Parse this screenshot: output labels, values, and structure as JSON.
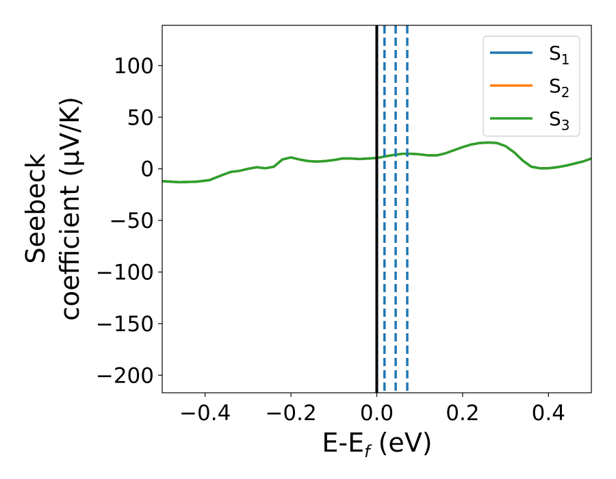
{
  "chart_data": {
    "type": "line",
    "xlabel": "E-E",
    "xlabel_sub": "f",
    "xlabel_unit": " (eV)",
    "ylabel_line1": "Seebeck",
    "ylabel_line2": "coefficient (μV/K)",
    "xlim": [
      -0.5,
      0.5
    ],
    "ylim": [
      -217,
      139
    ],
    "xticks": [
      -0.4,
      -0.2,
      0.0,
      0.2,
      0.4
    ],
    "xtick_labels": [
      "−0.4",
      "−0.2",
      "0.0",
      "0.2",
      "0.4"
    ],
    "yticks": [
      100,
      50,
      0,
      -50,
      -100,
      -150,
      -200
    ],
    "ytick_labels": [
      "100",
      "50",
      "0",
      "−50",
      "−100",
      "−150",
      "−200"
    ],
    "grid": false,
    "legend_position": "top-right",
    "series": [
      {
        "name": "S",
        "name_sub": "1",
        "color": "#1f77b4",
        "x": [
          -0.5,
          -0.46,
          -0.42,
          -0.39,
          -0.36,
          -0.34,
          -0.32,
          -0.3,
          -0.28,
          -0.26,
          -0.24,
          -0.22,
          -0.2,
          -0.18,
          -0.16,
          -0.14,
          -0.12,
          -0.1,
          -0.08,
          -0.06,
          -0.04,
          -0.02,
          0.0,
          0.02,
          0.04,
          0.06,
          0.08,
          0.1,
          0.12,
          0.14,
          0.16,
          0.18,
          0.2,
          0.22,
          0.24,
          0.26,
          0.28,
          0.3,
          0.32,
          0.34,
          0.36,
          0.38,
          0.4,
          0.42,
          0.44,
          0.46,
          0.48,
          0.5
        ],
        "y": [
          -12,
          -13,
          -12.5,
          -11,
          -6,
          -3,
          -2,
          0,
          1.5,
          0.5,
          2,
          9,
          11,
          9,
          7.5,
          7,
          7.5,
          8.5,
          10,
          10,
          9.5,
          10,
          10.5,
          12,
          13.5,
          14.5,
          14.5,
          14,
          13,
          13,
          15,
          18,
          21,
          23.5,
          25,
          25.5,
          25,
          22,
          16,
          8,
          2,
          0.5,
          0.5,
          1.5,
          3,
          5,
          7,
          10
        ]
      },
      {
        "name": "S",
        "name_sub": "2",
        "color": "#ff7f0e",
        "x": [
          -0.5,
          -0.46,
          -0.42,
          -0.39,
          -0.36,
          -0.34,
          -0.32,
          -0.3,
          -0.28,
          -0.26,
          -0.24,
          -0.22,
          -0.2,
          -0.18,
          -0.16,
          -0.14,
          -0.12,
          -0.1,
          -0.08,
          -0.06,
          -0.04,
          -0.02,
          0.0,
          0.02,
          0.04,
          0.06,
          0.08,
          0.1,
          0.12,
          0.14,
          0.16,
          0.18,
          0.2,
          0.22,
          0.24,
          0.26,
          0.28,
          0.3,
          0.32,
          0.34,
          0.36,
          0.38,
          0.4,
          0.42,
          0.44,
          0.46,
          0.48,
          0.5
        ],
        "y": [
          -12,
          -13,
          -12.5,
          -11,
          -6,
          -3,
          -2,
          0,
          1.5,
          0.5,
          2,
          9,
          11,
          9,
          7.5,
          7,
          7.5,
          8.5,
          10,
          10,
          9.5,
          10,
          10.5,
          12,
          13.5,
          14.5,
          14.5,
          14,
          13,
          13,
          15,
          18,
          21,
          23.5,
          25,
          25.5,
          25,
          22,
          16,
          8,
          2,
          0.5,
          0.5,
          1.5,
          3,
          5,
          7,
          10
        ]
      },
      {
        "name": "S",
        "name_sub": "3",
        "color": "#2ca02c",
        "x": [
          -0.5,
          -0.46,
          -0.42,
          -0.39,
          -0.36,
          -0.34,
          -0.32,
          -0.3,
          -0.28,
          -0.26,
          -0.24,
          -0.22,
          -0.2,
          -0.18,
          -0.16,
          -0.14,
          -0.12,
          -0.1,
          -0.08,
          -0.06,
          -0.04,
          -0.02,
          0.0,
          0.02,
          0.04,
          0.06,
          0.08,
          0.1,
          0.12,
          0.14,
          0.16,
          0.18,
          0.2,
          0.22,
          0.24,
          0.26,
          0.28,
          0.3,
          0.32,
          0.34,
          0.36,
          0.38,
          0.4,
          0.42,
          0.44,
          0.46,
          0.48,
          0.5
        ],
        "y": [
          -12,
          -13,
          -12.5,
          -11,
          -6,
          -3,
          -2,
          0,
          1.5,
          0.5,
          2,
          9,
          11,
          9,
          7.5,
          7,
          7.5,
          8.5,
          10,
          10,
          9.5,
          10,
          10.5,
          12,
          13.5,
          14.5,
          14.5,
          14,
          13,
          13,
          15,
          18,
          21,
          23.5,
          25,
          25.5,
          25,
          22,
          16,
          8,
          2,
          0.5,
          0.5,
          1.5,
          3,
          5,
          7,
          10
        ]
      }
    ],
    "vertical_lines": [
      {
        "x": 0.0,
        "style": "solid",
        "color": "#000000"
      },
      {
        "x": 0.018,
        "style": "dashed",
        "color": "#1f77b4"
      },
      {
        "x": 0.044,
        "style": "dashed",
        "color": "#1f77b4"
      },
      {
        "x": 0.071,
        "style": "dashed",
        "color": "#1f77b4"
      }
    ]
  }
}
